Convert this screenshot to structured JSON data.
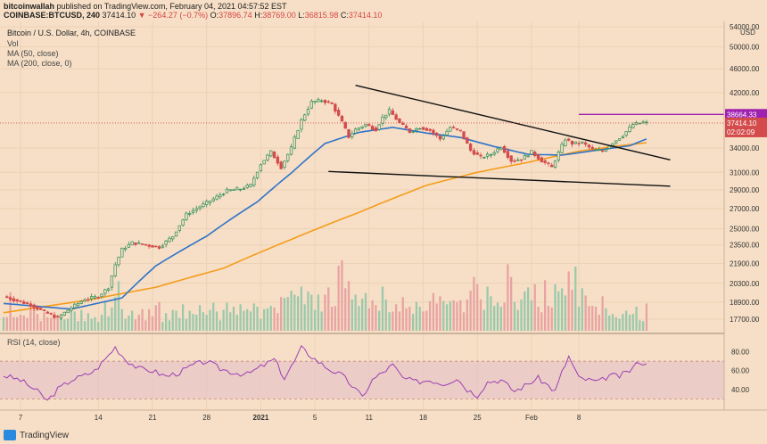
{
  "header": {
    "line1_user": "bitcoinwallah",
    "line1_rest": " published on TradingView.com, February 04, 2021 04:57:52 EST",
    "line2_symbol": "COINBASE:BTCUSD, 240",
    "line2_price": "37414.10",
    "line2_change": "−264.27 (−0.7%)",
    "line2_o_label": "O:",
    "line2_o": "37896.74",
    "line2_h_label": "H:",
    "line2_h": "38769.00",
    "line2_l_label": "L:",
    "line2_l": "36815.98",
    "line2_c_label": "C:",
    "line2_c": "37414.10"
  },
  "legend": {
    "title": "Bitcoin / U.S. Dollar, 4h, COINBASE",
    "vol": "Vol",
    "ma50": "MA (50, close)",
    "ma200": "MA (200, close, 0)",
    "rsi": "RSI (14, close)"
  },
  "colors": {
    "background": "#f6dfc6",
    "up": "#2f8f5a",
    "down": "#d44b4b",
    "ma50": "#2f73c9",
    "ma200": "#f59c1a",
    "rsi": "#9b3fb5",
    "resistance": "#a020b0",
    "rsi_band": "#e8c3c6"
  },
  "chart_data": [
    {
      "type": "candlestick",
      "title": "Bitcoin / U.S. Dollar, 4h, COINBASE",
      "ylabel": "USD",
      "y_scale": "log",
      "ylim": [
        17000,
        54000
      ],
      "y_ticks": [
        54000,
        50000,
        46000,
        42000,
        38664.33,
        37414.1,
        34000,
        31000,
        29000,
        27000,
        25000,
        23500,
        21900,
        20300,
        18900,
        17700
      ],
      "y_tick_labels": [
        "54000.00",
        "50000.00",
        "46000.00",
        "42000.00",
        "38664.33",
        "37414.10",
        "34000.00",
        "31000.00",
        "29000.00",
        "27000.00",
        "25000.00",
        "23500.00",
        "21900.00",
        "20300.00",
        "18900.00",
        "17700.00"
      ],
      "x_ticks": [
        "7",
        "14",
        "21",
        "28",
        "2021",
        "5",
        "11",
        "18",
        "25",
        "Feb",
        "8"
      ],
      "price_key_points": [
        [
          0,
          19300
        ],
        [
          4,
          19000
        ],
        [
          8,
          18700
        ],
        [
          12,
          18200
        ],
        [
          16,
          17800
        ],
        [
          20,
          18500
        ],
        [
          24,
          19100
        ],
        [
          28,
          19300
        ],
        [
          31,
          20000
        ],
        [
          33,
          21800
        ],
        [
          35,
          23100
        ],
        [
          38,
          23700
        ],
        [
          42,
          23500
        ],
        [
          46,
          23300
        ],
        [
          50,
          24300
        ],
        [
          54,
          26400
        ],
        [
          58,
          27200
        ],
        [
          62,
          28000
        ],
        [
          66,
          28900
        ],
        [
          70,
          29100
        ],
        [
          73,
          29500
        ],
        [
          76,
          32000
        ],
        [
          79,
          33500
        ],
        [
          82,
          31600
        ],
        [
          85,
          34000
        ],
        [
          88,
          37800
        ],
        [
          91,
          40500
        ],
        [
          94,
          40800
        ],
        [
          97,
          40200
        ],
        [
          100,
          37500
        ],
        [
          102,
          35500
        ],
        [
          104,
          36500
        ],
        [
          107,
          37200
        ],
        [
          110,
          36500
        ],
        [
          112,
          38200
        ],
        [
          114,
          39200
        ],
        [
          117,
          37400
        ],
        [
          120,
          36200
        ],
        [
          123,
          36800
        ],
        [
          126,
          36400
        ],
        [
          129,
          35200
        ],
        [
          132,
          36800
        ],
        [
          135,
          36200
        ],
        [
          138,
          33700
        ],
        [
          141,
          32800
        ],
        [
          144,
          33200
        ],
        [
          147,
          34200
        ],
        [
          150,
          32400
        ],
        [
          153,
          32600
        ],
        [
          156,
          33500
        ],
        [
          159,
          32400
        ],
        [
          162,
          31600
        ],
        [
          164,
          33400
        ],
        [
          166,
          35200
        ],
        [
          168,
          34600
        ],
        [
          171,
          34700
        ],
        [
          174,
          33800
        ],
        [
          177,
          33600
        ],
        [
          180,
          34700
        ],
        [
          183,
          35700
        ],
        [
          186,
          37200
        ],
        [
          189,
          37500
        ],
        [
          190,
          37414.1
        ]
      ],
      "price_labels": [
        {
          "label": "38664.33",
          "value": 38664.33,
          "color": "#a020b0"
        },
        {
          "label": "37414.10",
          "value": 37414.1,
          "color": "#d44b4b"
        },
        {
          "label": "02:02:09",
          "value": null,
          "color": "#d44b4b"
        }
      ],
      "trendlines": [
        {
          "name": "upper",
          "from": [
            104,
            43200
          ],
          "to": [
            197,
            32500
          ]
        },
        {
          "name": "lower",
          "from": [
            96,
            31100
          ],
          "to": [
            197,
            29400
          ]
        },
        {
          "name": "resistance",
          "from": [
            170,
            38664.33
          ],
          "to": [
            214,
            38664.33
          ]
        }
      ],
      "ma50_points": [
        [
          0,
          18800
        ],
        [
          20,
          18400
        ],
        [
          35,
          19200
        ],
        [
          45,
          21700
        ],
        [
          60,
          24300
        ],
        [
          75,
          27700
        ],
        [
          85,
          30900
        ],
        [
          95,
          34600
        ],
        [
          105,
          36100
        ],
        [
          115,
          36800
        ],
        [
          125,
          36000
        ],
        [
          135,
          35400
        ],
        [
          145,
          34200
        ],
        [
          155,
          33200
        ],
        [
          165,
          33100
        ],
        [
          175,
          33700
        ],
        [
          185,
          34300
        ],
        [
          190,
          35200
        ]
      ],
      "ma200_points": [
        [
          0,
          18150
        ],
        [
          25,
          19050
        ],
        [
          45,
          20000
        ],
        [
          65,
          21500
        ],
        [
          85,
          24000
        ],
        [
          105,
          26600
        ],
        [
          125,
          29500
        ],
        [
          140,
          31000
        ],
        [
          155,
          32200
        ],
        [
          170,
          33600
        ],
        [
          180,
          34200
        ],
        [
          190,
          34700
        ]
      ],
      "volume_levels": [
        0.17,
        0.17,
        0.48,
        0.17,
        0.17,
        0.2,
        0.19,
        0.16,
        0.29,
        0.29,
        0.21,
        0.12,
        0.23,
        0.17,
        0.16,
        0.18,
        0.18,
        0.2,
        0.14,
        0.15,
        0.25,
        0.24,
        0.12,
        0.26,
        0.12,
        0.22,
        0.15,
        0.17,
        0.11,
        0.2,
        0.37,
        0.18,
        0.29,
        0.42,
        0.62,
        0.27,
        0.15,
        0.19,
        0.25,
        0.14,
        0.2,
        0.27,
        0.13,
        0.27,
        0.18,
        0.32,
        0.36,
        0.11,
        0.22,
        0.13,
        0.26,
        0.25,
        0.16,
        0.33,
        0.15,
        0.25,
        0.21,
        0.2,
        0.32,
        0.23,
        0.2,
        0.26,
        0.35,
        0.24,
        0.13,
        0.26,
        0.35,
        0.23,
        0.3,
        0.2,
        0.33,
        0.25,
        0.27,
        0.24,
        0.34,
        0.3,
        0.15,
        0.27,
        0.28,
        0.31,
        0.29,
        0.22,
        0.42,
        0.41,
        0.42,
        0.5,
        0.45,
        0.43,
        0.55,
        0.33,
        0.49,
        0.45,
        0.26,
        0.45,
        0.24,
        0.45,
        0.54,
        0.3,
        0.31,
        0.81,
        0.88,
        0.53,
        0.62,
        0.39,
        0.45,
        0.31,
        0.4,
        0.47,
        0.28,
        0.38,
        0.32,
        0.25,
        0.55,
        0.39,
        0.23,
        0.24,
        0.33,
        0.24,
        0.42,
        0.28,
        0.3,
        0.21,
        0.36,
        0.3,
        0.24,
        0.25,
        0.37,
        0.47,
        0.34,
        0.43,
        0.37,
        0.33,
        0.37,
        0.38,
        0.36,
        0.38,
        0.23,
        0.39,
        0.5,
        0.67,
        0.58,
        0.39,
        0.26,
        0.55,
        0.43,
        0.31,
        0.35,
        0.3,
        0.35,
        0.83,
        0.67,
        0.36,
        0.26,
        0.39,
        0.49,
        0.54,
        0.38,
        0.58,
        0.3,
        0.23,
        0.63,
        0.31,
        0.29,
        0.58,
        0.49,
        0.53,
        0.44,
        0.74,
        0.51,
        0.8,
        0.3,
        0.53,
        0.44,
        0.31,
        0.31,
        0.3,
        0.2,
        0.43,
        0.28,
        0.19,
        0.21,
        0.17,
        0.15,
        0.21,
        0.25,
        0.2,
        0.21,
        0.3,
        0.13,
        0.12,
        0.34,
        0.17
      ],
      "rsi_ylim": [
        20,
        90
      ],
      "rsi_ticks": [
        80,
        60,
        40
      ],
      "rsi_tick_labels": [
        "80.00",
        "60.00",
        "40.00"
      ],
      "rsi_band": [
        30,
        70
      ],
      "rsi_points": [
        [
          0,
          55
        ],
        [
          5,
          50
        ],
        [
          10,
          38
        ],
        [
          13,
          28
        ],
        [
          16,
          40
        ],
        [
          20,
          50
        ],
        [
          24,
          55
        ],
        [
          27,
          60
        ],
        [
          30,
          72
        ],
        [
          33,
          85
        ],
        [
          36,
          72
        ],
        [
          40,
          62
        ],
        [
          44,
          60
        ],
        [
          48,
          54
        ],
        [
          52,
          58
        ],
        [
          56,
          66
        ],
        [
          60,
          70
        ],
        [
          64,
          62
        ],
        [
          68,
          58
        ],
        [
          72,
          56
        ],
        [
          76,
          64
        ],
        [
          80,
          72
        ],
        [
          83,
          52
        ],
        [
          86,
          70
        ],
        [
          88,
          84
        ],
        [
          92,
          72
        ],
        [
          96,
          62
        ],
        [
          100,
          55
        ],
        [
          103,
          44
        ],
        [
          106,
          32
        ],
        [
          109,
          50
        ],
        [
          112,
          58
        ],
        [
          115,
          66
        ],
        [
          118,
          52
        ],
        [
          122,
          48
        ],
        [
          126,
          50
        ],
        [
          130,
          46
        ],
        [
          134,
          52
        ],
        [
          137,
          40
        ],
        [
          140,
          34
        ],
        [
          143,
          48
        ],
        [
          147,
          50
        ],
        [
          151,
          38
        ],
        [
          154,
          44
        ],
        [
          158,
          52
        ],
        [
          161,
          44
        ],
        [
          163,
          38
        ],
        [
          165,
          58
        ],
        [
          167,
          75
        ],
        [
          170,
          52
        ],
        [
          173,
          50
        ],
        [
          176,
          48
        ],
        [
          179,
          55
        ],
        [
          182,
          54
        ],
        [
          185,
          60
        ],
        [
          188,
          70
        ],
        [
          190,
          66
        ]
      ]
    }
  ],
  "footer": {
    "brand": "TradingView"
  }
}
